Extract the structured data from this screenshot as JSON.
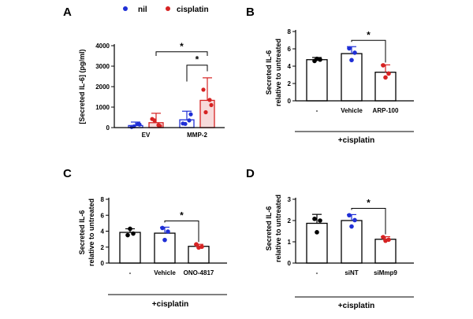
{
  "colors": {
    "nil": "#1f2fd6",
    "cisplatin": "#d62323",
    "control": "#000000",
    "axis": "#000000",
    "bar_fill_red": "#f7dada"
  },
  "chart_data": [
    {
      "panel": "A",
      "type": "bar",
      "ylabel": "[Secreted IL-6] (pg/ml)",
      "ylim": [
        0,
        4000
      ],
      "yticks": [
        0,
        1000,
        2000,
        3000,
        4000
      ],
      "categories": [
        "EV",
        "MMP-2"
      ],
      "legend": [
        "nil",
        "cisplatin"
      ],
      "series": [
        {
          "name": "nil",
          "color": "nil",
          "values": [
            100,
            380
          ],
          "errors": [
            170,
            420
          ],
          "points": [
            [
              30,
              150,
              60,
              170
            ],
            [
              200,
              650,
              180,
              350
            ]
          ]
        },
        {
          "name": "cisplatin",
          "color": "cisplatin",
          "values": [
            240,
            1330
          ],
          "errors": [
            460,
            1100
          ],
          "points": [
            [
              420,
              80,
              350,
              120
            ],
            [
              1850,
              1100,
              750,
              1350
            ]
          ]
        }
      ],
      "significance": [
        {
          "label": "*",
          "from": "MMP-2 nil",
          "to": "MMP-2 cisplatin"
        },
        {
          "label": "*",
          "from": "EV cisplatin",
          "to": "MMP-2 cisplatin"
        }
      ]
    },
    {
      "panel": "B",
      "type": "bar",
      "ylabel_lines": [
        "Secreted IL-6",
        "relative to untreated"
      ],
      "ylim": [
        0,
        8
      ],
      "yticks": [
        0,
        2,
        4,
        6,
        8
      ],
      "categories": [
        "-",
        "Vehicle",
        "ARP-100"
      ],
      "values": [
        4.75,
        5.45,
        3.3
      ],
      "errors": [
        0.25,
        0.8,
        0.85
      ],
      "point_colors": [
        "control",
        "nil",
        "cisplatin"
      ],
      "points": [
        [
          4.6,
          4.85,
          4.75
        ],
        [
          6.05,
          4.7,
          5.55
        ],
        [
          4.1,
          2.7,
          3.15
        ]
      ],
      "condition_label": "+cisplatin",
      "significance": [
        {
          "label": "*",
          "from": "Vehicle",
          "to": "ARP-100"
        }
      ]
    },
    {
      "panel": "C",
      "type": "bar",
      "ylabel_lines": [
        "Secreted IL-6",
        "relative to untreated"
      ],
      "ylim": [
        0,
        8
      ],
      "yticks": [
        0,
        2,
        4,
        6,
        8
      ],
      "categories": [
        "-",
        "Vehicle",
        "ONO-4817"
      ],
      "values": [
        3.85,
        3.75,
        2.1
      ],
      "errors": [
        0.45,
        0.75,
        0.25
      ],
      "point_colors": [
        "control",
        "nil",
        "cisplatin"
      ],
      "points": [
        [
          3.5,
          4.3,
          3.7
        ],
        [
          4.4,
          2.9,
          3.95
        ],
        [
          2.35,
          1.95,
          2.05
        ]
      ],
      "condition_label": "+cisplatin",
      "significance": [
        {
          "label": "*",
          "from": "Vehicle",
          "to": "ONO-4817"
        }
      ]
    },
    {
      "panel": "D",
      "type": "bar",
      "ylabel_lines": [
        "Secreted IL-6",
        "relative to untreated"
      ],
      "ylim": [
        0,
        3
      ],
      "yticks": [
        0,
        1,
        2,
        3
      ],
      "categories": [
        "-",
        "siNT",
        "siMmp9"
      ],
      "values": [
        1.87,
        2.0,
        1.12
      ],
      "errors": [
        0.42,
        0.28,
        0.12
      ],
      "point_colors": [
        "control",
        "nil",
        "cisplatin"
      ],
      "points": [
        [
          2.08,
          1.45,
          2.0
        ],
        [
          2.25,
          1.72,
          2.02
        ],
        [
          1.22,
          1.05,
          1.1
        ]
      ],
      "condition_label": "+cisplatin",
      "significance": [
        {
          "label": "*",
          "from": "siNT",
          "to": "siMmp9"
        }
      ]
    }
  ]
}
